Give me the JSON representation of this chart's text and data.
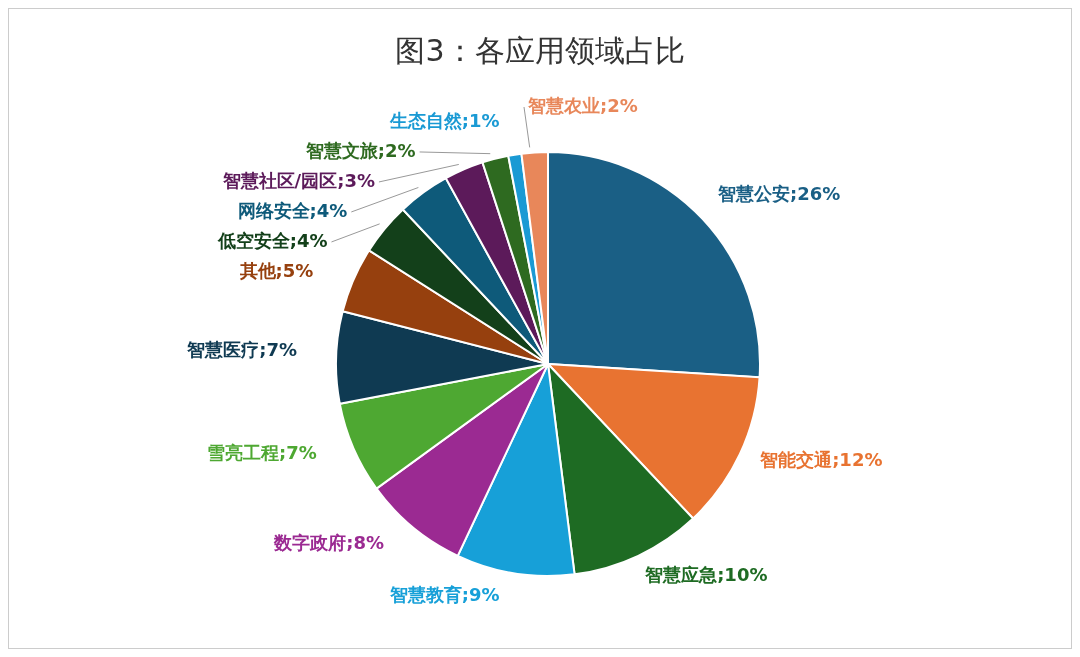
{
  "chart_data": {
    "type": "pie",
    "title": "图3：各应用领域占比",
    "categories": [
      "智慧公安",
      "智能交通",
      "智慧应急",
      "智慧教育",
      "数字政府",
      "雪亮工程",
      "智慧医疗",
      "其他",
      "低空安全",
      "网络安全",
      "智慧社区/园区",
      "智慧文旅",
      "生态自然",
      "智慧农业"
    ],
    "values": [
      26,
      12,
      10,
      9,
      8,
      7,
      7,
      5,
      4,
      4,
      3,
      2,
      1,
      2
    ],
    "colors": [
      "#1a5f85",
      "#e87331",
      "#1e6b23",
      "#17a0d8",
      "#9b2a92",
      "#4ea832",
      "#0f3a52",
      "#96400e",
      "#13401a",
      "#0e5a7a",
      "#5c1a5a",
      "#2e6a20",
      "#1a9ad4",
      "#e8875a"
    ],
    "value_labels": [
      ";26%",
      ";12%",
      ";10%",
      ";9%",
      ";8%",
      ";7%",
      ";7%",
      ";5%",
      ";4%",
      ";4%",
      ";3%",
      ";2%",
      ";1%",
      ";2%"
    ]
  }
}
